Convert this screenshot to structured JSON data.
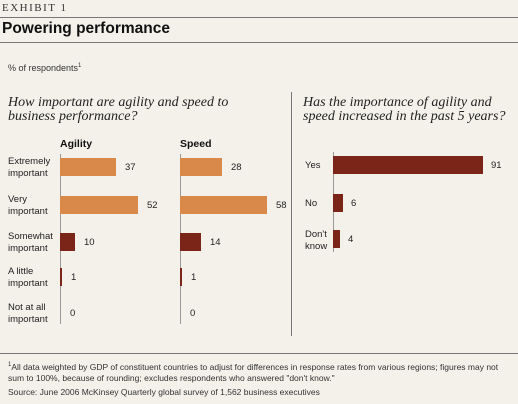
{
  "exhibit": "EXHIBIT 1",
  "title": "Powering performance",
  "subtitle": "% of respondents",
  "subtitle_note": "1",
  "footnote_mark": "1",
  "footnote": "All data weighted by GDP of constituent countries to adjust for differences in response rates from various regions; figures may not sum to 100%, because of rounding; excludes respondents who answered \"don't know.\"",
  "source": "Source: June 2006 McKinsey Quarterly global survey of 1,562 business executives",
  "colors": {
    "orange": "#d98a4a",
    "dark_red": "#7a2518"
  },
  "chart_data": [
    {
      "type": "bar",
      "orientation": "horizontal",
      "title": "How important are agility and speed to business performance?",
      "categories": [
        [
          "Extremely",
          "important"
        ],
        [
          "Very",
          "important"
        ],
        [
          "Somewhat",
          "important"
        ],
        [
          "A little",
          "important"
        ],
        [
          "Not at all",
          "important"
        ]
      ],
      "series": [
        {
          "name": "Agility",
          "values": [
            37,
            52,
            10,
            1,
            0
          ]
        },
        {
          "name": "Speed",
          "values": [
            28,
            58,
            14,
            1,
            0
          ]
        }
      ]
    },
    {
      "type": "bar",
      "orientation": "horizontal",
      "title": "Has the importance of agility and speed increased in the past 5 years?",
      "categories": [
        [
          "Yes"
        ],
        [
          "No"
        ],
        [
          "Don't",
          "know"
        ]
      ],
      "series": [
        {
          "name": "",
          "values": [
            91,
            6,
            4
          ]
        }
      ]
    }
  ]
}
